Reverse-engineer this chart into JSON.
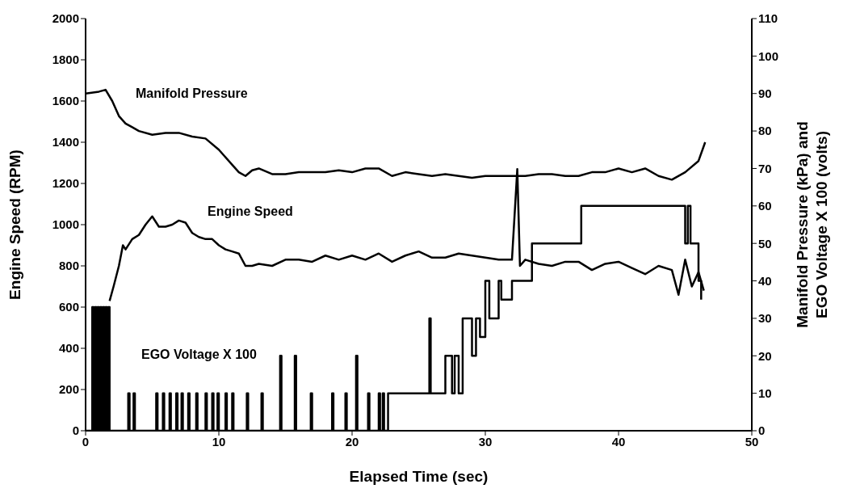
{
  "chart_data": {
    "type": "line",
    "xlabel": "Elapsed Time (sec)",
    "ylabel": "Engine Speed (RPM)",
    "y2label": "Manifold Pressure (kPa) and EGO Voltage X 100 (volts)",
    "xlim": [
      0,
      50
    ],
    "xticks": [
      0,
      10,
      20,
      30,
      40,
      50
    ],
    "ylim": [
      0,
      2000
    ],
    "yticks": [
      0,
      200,
      400,
      600,
      800,
      1000,
      1200,
      1400,
      1600,
      1800,
      2000
    ],
    "y2lim": [
      0,
      110
    ],
    "y2ticks": [
      0,
      10,
      20,
      30,
      40,
      50,
      60,
      70,
      80,
      90,
      100,
      110
    ],
    "marker": "none",
    "line_style": "solid",
    "series": [
      {
        "name": "Manifold Pressure",
        "color": "#000000",
        "axis": "y2",
        "x": [
          0,
          1,
          1.5,
          2,
          2.5,
          3,
          3.5,
          4,
          5,
          6,
          7,
          8,
          9,
          10,
          11,
          11.5,
          12,
          12.5,
          13,
          14,
          15,
          16,
          17,
          18,
          19,
          20,
          21,
          22,
          23,
          24,
          25,
          26,
          27,
          28,
          29,
          30,
          31,
          32,
          33,
          34,
          35,
          36,
          37,
          38,
          39,
          40,
          41,
          42,
          43,
          44,
          45,
          46,
          46.5
        ],
        "values": [
          90,
          90.5,
          91,
          88,
          84,
          82,
          81,
          80,
          79,
          79.5,
          79.5,
          78.5,
          78,
          75,
          71,
          69,
          68,
          69.5,
          70,
          68.5,
          68.5,
          69,
          69,
          69,
          69.5,
          69,
          70,
          70,
          68,
          69,
          68.5,
          68,
          68.5,
          68,
          67.5,
          68,
          68,
          68,
          68,
          68.5,
          68.5,
          68,
          68,
          69,
          69,
          70,
          69,
          70,
          68,
          67,
          69,
          72,
          77
        ]
      },
      {
        "name": "Engine Speed",
        "color": "#000000",
        "axis": "y",
        "x": [
          1.8,
          2.1,
          2.5,
          2.8,
          3,
          3.5,
          4,
          4.5,
          5,
          5.5,
          6,
          6.5,
          7,
          7.5,
          8,
          8.5,
          9,
          9.5,
          10,
          10.5,
          11,
          11.5,
          12,
          12.5,
          13,
          14,
          15,
          16,
          17,
          18,
          19,
          20,
          21,
          22,
          23,
          24,
          25,
          26,
          27,
          28,
          29,
          30,
          31,
          32,
          32.4,
          32.6,
          33,
          34,
          35,
          36,
          37,
          38,
          39,
          40,
          41,
          42,
          43,
          44,
          44.5,
          45,
          45.5,
          46,
          46.4
        ],
        "values": [
          630,
          700,
          800,
          900,
          880,
          930,
          950,
          1000,
          1040,
          990,
          990,
          1000,
          1020,
          1010,
          960,
          940,
          930,
          930,
          900,
          880,
          870,
          860,
          800,
          800,
          810,
          800,
          830,
          830,
          820,
          850,
          830,
          850,
          830,
          860,
          820,
          850,
          870,
          840,
          840,
          860,
          850,
          840,
          830,
          830,
          1270,
          800,
          830,
          810,
          800,
          820,
          820,
          780,
          810,
          820,
          790,
          760,
          800,
          780,
          660,
          830,
          700,
          770,
          680
        ]
      },
      {
        "name": "EGO Voltage X 100",
        "color": "#000000",
        "axis": "y2",
        "type": "step",
        "x": [
          0,
          0.5,
          0.6,
          0.7,
          0.8,
          0.9,
          1.0,
          1.1,
          1.2,
          1.3,
          1.4,
          1.5,
          1.6,
          1.7,
          1.8,
          3.2,
          3.3,
          3.6,
          3.7,
          5.3,
          5.4,
          5.8,
          5.9,
          6.3,
          6.4,
          6.8,
          6.9,
          7.2,
          7.3,
          7.7,
          7.8,
          8.3,
          8.4,
          9.0,
          9.1,
          9.5,
          9.6,
          9.9,
          10.0,
          10.5,
          10.6,
          11.0,
          11.1,
          12.1,
          12.2,
          13.2,
          13.3,
          14.6,
          14.7,
          15.7,
          15.8,
          16.9,
          17.0,
          18.5,
          18.6,
          19.5,
          19.6,
          20.3,
          20.4,
          21.2,
          21.3,
          22.0,
          22.1,
          22.3,
          22.4,
          22.7,
          25.8,
          25.9,
          26.0,
          27.0,
          27.5,
          27.7,
          28.0,
          28.3,
          29.0,
          29.3,
          29.6,
          30.0,
          30.3,
          31.0,
          31.2,
          32.0,
          33.5,
          34.5,
          37.2,
          45.0,
          45.2,
          45.4,
          46.0,
          46.2
        ],
        "values": [
          0,
          33,
          0,
          33,
          0,
          33,
          0,
          33,
          0,
          33,
          0,
          33,
          0,
          33,
          0,
          10,
          0,
          10,
          0,
          10,
          0,
          10,
          0,
          10,
          0,
          10,
          0,
          10,
          0,
          10,
          0,
          10,
          0,
          10,
          0,
          10,
          0,
          10,
          0,
          10,
          0,
          10,
          0,
          10,
          0,
          10,
          0,
          20,
          0,
          20,
          0,
          10,
          0,
          10,
          0,
          10,
          0,
          20,
          0,
          10,
          0,
          10,
          0,
          10,
          0,
          10,
          30,
          10,
          10,
          20,
          10,
          20,
          10,
          30,
          20,
          30,
          25,
          40,
          30,
          40,
          35,
          40,
          50,
          50,
          60,
          50,
          60,
          50,
          40,
          35
        ]
      }
    ]
  }
}
